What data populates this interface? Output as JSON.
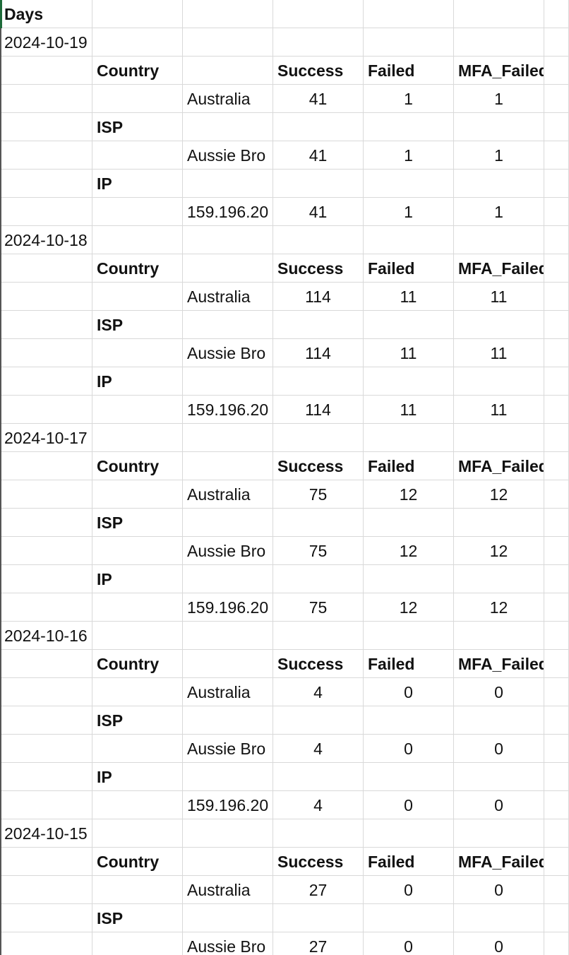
{
  "header": {
    "title": "Days"
  },
  "days": [
    {
      "date": "2024-10-19",
      "headers": [
        "Country",
        "Success",
        "Failed",
        "MFA_Failed"
      ],
      "country": {
        "name": "Australia",
        "success": 41,
        "failed": 1,
        "mfa_failed": 1
      },
      "isp_label": "ISP",
      "isp": {
        "name": "Aussie Bro",
        "success": 41,
        "failed": 1,
        "mfa_failed": 1
      },
      "ip_label": "IP",
      "ip": {
        "name": "159.196.20",
        "success": 41,
        "failed": 1,
        "mfa_failed": 1
      }
    },
    {
      "date": "2024-10-18",
      "headers": [
        "Country",
        "Success",
        "Failed",
        "MFA_Failed"
      ],
      "country": {
        "name": "Australia",
        "success": 114,
        "failed": 11,
        "mfa_failed": 11
      },
      "isp_label": "ISP",
      "isp": {
        "name": "Aussie Bro",
        "success": 114,
        "failed": 11,
        "mfa_failed": 11
      },
      "ip_label": "IP",
      "ip": {
        "name": "159.196.20",
        "success": 114,
        "failed": 11,
        "mfa_failed": 11
      }
    },
    {
      "date": "2024-10-17",
      "headers": [
        "Country",
        "Success",
        "Failed",
        "MFA_Failed"
      ],
      "country": {
        "name": "Australia",
        "success": 75,
        "failed": 12,
        "mfa_failed": 12
      },
      "isp_label": "ISP",
      "isp": {
        "name": "Aussie Bro",
        "success": 75,
        "failed": 12,
        "mfa_failed": 12
      },
      "ip_label": "IP",
      "ip": {
        "name": "159.196.20",
        "success": 75,
        "failed": 12,
        "mfa_failed": 12
      }
    },
    {
      "date": "2024-10-16",
      "headers": [
        "Country",
        "Success",
        "Failed",
        "MFA_Failed"
      ],
      "country": {
        "name": "Australia",
        "success": 4,
        "failed": 0,
        "mfa_failed": 0
      },
      "isp_label": "ISP",
      "isp": {
        "name": "Aussie Bro",
        "success": 4,
        "failed": 0,
        "mfa_failed": 0
      },
      "ip_label": "IP",
      "ip": {
        "name": "159.196.20",
        "success": 4,
        "failed": 0,
        "mfa_failed": 0
      }
    },
    {
      "date": "2024-10-15",
      "headers": [
        "Country",
        "Success",
        "Failed",
        "MFA_Failed"
      ],
      "country": {
        "name": "Australia",
        "success": 27,
        "failed": 0,
        "mfa_failed": 0
      },
      "isp_label": "ISP",
      "isp": {
        "name": "Aussie Bro",
        "success": 27,
        "failed": 0,
        "mfa_failed": 0
      }
    }
  ]
}
